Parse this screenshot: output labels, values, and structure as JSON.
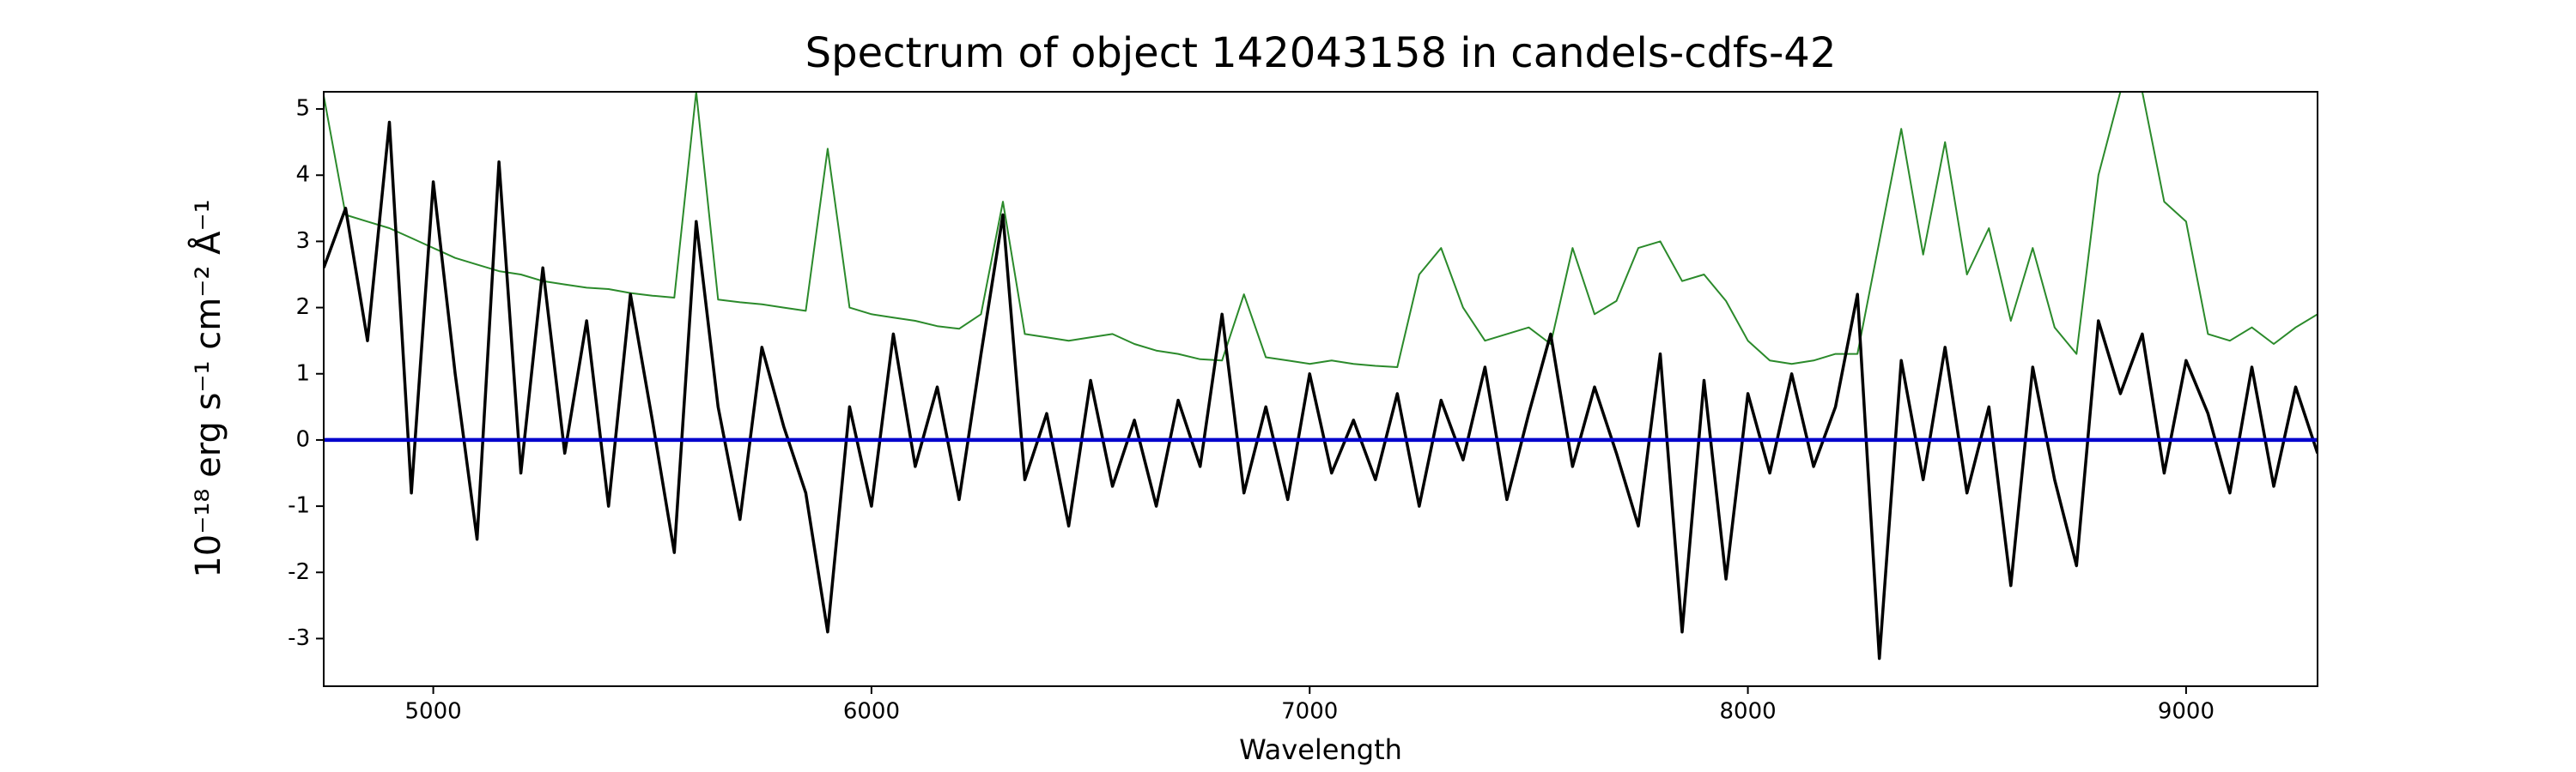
{
  "chart_data": {
    "type": "line",
    "title": "Spectrum of object 142043158 in candels-cdfs-42",
    "xlabel": "Wavelength",
    "ylabel": "10⁻¹⁸ erg s⁻¹ cm⁻² Å⁻¹",
    "x": [
      4750,
      4800,
      4850,
      4900,
      4950,
      5000,
      5050,
      5100,
      5150,
      5200,
      5250,
      5300,
      5350,
      5400,
      5450,
      5500,
      5550,
      5600,
      5650,
      5700,
      5750,
      5800,
      5850,
      5900,
      5950,
      6000,
      6050,
      6100,
      6150,
      6200,
      6250,
      6300,
      6350,
      6400,
      6450,
      6500,
      6550,
      6600,
      6650,
      6700,
      6750,
      6800,
      6850,
      6900,
      6950,
      7000,
      7050,
      7100,
      7150,
      7200,
      7250,
      7300,
      7350,
      7400,
      7450,
      7500,
      7550,
      7600,
      7650,
      7700,
      7750,
      7800,
      7850,
      7900,
      7950,
      8000,
      8050,
      8100,
      8150,
      8200,
      8250,
      8300,
      8350,
      8400,
      8450,
      8500,
      8550,
      8600,
      8650,
      8700,
      8750,
      8800,
      8850,
      8900,
      8950,
      9000,
      9050,
      9100,
      9150,
      9200,
      9250,
      9300
    ],
    "series": [
      {
        "color": "#2b8a2b",
        "width": 2,
        "values": [
          5.2,
          3.4,
          3.3,
          3.2,
          3.05,
          2.9,
          2.75,
          2.65,
          2.55,
          2.5,
          2.4,
          2.35,
          2.3,
          2.28,
          2.22,
          2.18,
          2.15,
          5.26,
          2.12,
          2.08,
          2.05,
          2.0,
          1.95,
          4.4,
          2.0,
          1.9,
          1.85,
          1.8,
          1.72,
          1.68,
          1.9,
          3.6,
          1.6,
          1.55,
          1.5,
          1.55,
          1.6,
          1.45,
          1.35,
          1.3,
          1.22,
          1.2,
          2.2,
          1.25,
          1.2,
          1.15,
          1.2,
          1.15,
          1.12,
          1.1,
          2.5,
          2.9,
          2.0,
          1.5,
          1.6,
          1.7,
          1.45,
          2.9,
          1.9,
          2.1,
          2.9,
          3.0,
          2.4,
          2.5,
          2.1,
          1.5,
          1.2,
          1.15,
          1.2,
          1.3,
          1.3,
          3.0,
          4.7,
          2.8,
          4.5,
          2.5,
          3.2,
          1.8,
          2.9,
          1.7,
          1.3,
          4.0,
          5.26,
          5.26,
          3.6,
          3.3,
          1.6,
          1.5,
          1.7,
          1.45,
          1.7,
          1.9
        ]
      },
      {
        "color": "#000000",
        "width": 3.5,
        "values": [
          2.6,
          3.5,
          1.5,
          4.8,
          -0.8,
          3.9,
          1.0,
          -1.5,
          4.2,
          -0.5,
          2.6,
          -0.2,
          1.8,
          -1.0,
          2.2,
          0.3,
          -1.7,
          3.3,
          0.5,
          -1.2,
          1.4,
          0.2,
          -0.8,
          -2.9,
          0.5,
          -1.0,
          1.6,
          -0.4,
          0.8,
          -0.9,
          1.3,
          3.4,
          -0.6,
          0.4,
          -1.3,
          0.9,
          -0.7,
          0.3,
          -1.0,
          0.6,
          -0.4,
          1.9,
          -0.8,
          0.5,
          -0.9,
          1.0,
          -0.5,
          0.3,
          -0.6,
          0.7,
          -1.0,
          0.6,
          -0.3,
          1.1,
          -0.9,
          0.4,
          1.6,
          -0.4,
          0.8,
          -0.2,
          -1.3,
          1.3,
          -2.9,
          0.9,
          -2.1,
          0.7,
          -0.5,
          1.0,
          -0.4,
          0.5,
          2.2,
          -3.3,
          1.2,
          -0.6,
          1.4,
          -0.8,
          0.5,
          -2.2,
          1.1,
          -0.6,
          -1.9,
          1.8,
          0.7,
          1.6,
          -0.5,
          1.2,
          0.4,
          -0.8,
          1.1,
          -0.7,
          0.8,
          -0.2
        ]
      }
    ],
    "hlines": [
      {
        "value": 0,
        "color": "#0000cc",
        "width": 4.5
      }
    ],
    "xlim": [
      4750,
      9300
    ],
    "ylim": [
      -3.72,
      5.26
    ],
    "xticks": [
      5000,
      6000,
      7000,
      8000,
      9000
    ],
    "yticks": [
      -3,
      -2,
      -1,
      0,
      1,
      2,
      3,
      4,
      5
    ]
  }
}
